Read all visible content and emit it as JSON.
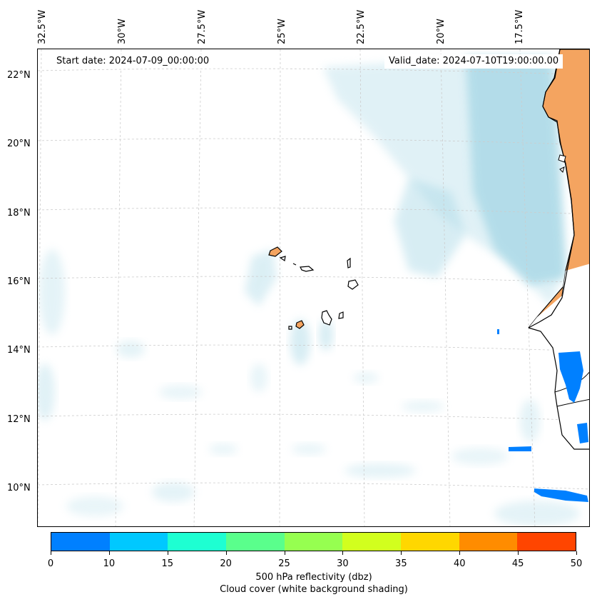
{
  "map": {
    "top_labels": [
      "32.5°W",
      "30°W",
      "27.5°W",
      "25°W",
      "22.5°W",
      "20°W",
      "17.5°W"
    ],
    "left_labels": [
      "22°N",
      "20°N",
      "18°N",
      "16°N",
      "14°N",
      "12°N",
      "10°N"
    ],
    "start_date": "Start date: 2024-07-09_00:00:00",
    "valid_date": "Valid_date: 2024-07-10T19:00:00.00",
    "colors": {
      "land": "#f4a460",
      "cloud": "#a8d8e6",
      "reflectivity_low": "#0080ff",
      "gridline": "#cccccc",
      "coast": "#000000"
    }
  },
  "colorbar": {
    "bins": [
      {
        "from": 0,
        "to": 10,
        "color": "#0080ff"
      },
      {
        "from": 10,
        "to": 15,
        "color": "#00c8ff"
      },
      {
        "from": 15,
        "to": 20,
        "color": "#1effd2"
      },
      {
        "from": 20,
        "to": 25,
        "color": "#5aff8c"
      },
      {
        "from": 25,
        "to": 30,
        "color": "#96ff50"
      },
      {
        "from": 30,
        "to": 35,
        "color": "#d2ff1e"
      },
      {
        "from": 35,
        "to": 40,
        "color": "#ffd700"
      },
      {
        "from": 40,
        "to": 45,
        "color": "#ff8c00"
      },
      {
        "from": 45,
        "to": 50,
        "color": "#ff4500"
      }
    ],
    "ticks": [
      "0",
      "10",
      "15",
      "20",
      "25",
      "30",
      "35",
      "40",
      "45",
      "50"
    ],
    "label": "500 hPa reflectivity (dbz)",
    "sublabel": "Cloud cover (white background shading)"
  }
}
